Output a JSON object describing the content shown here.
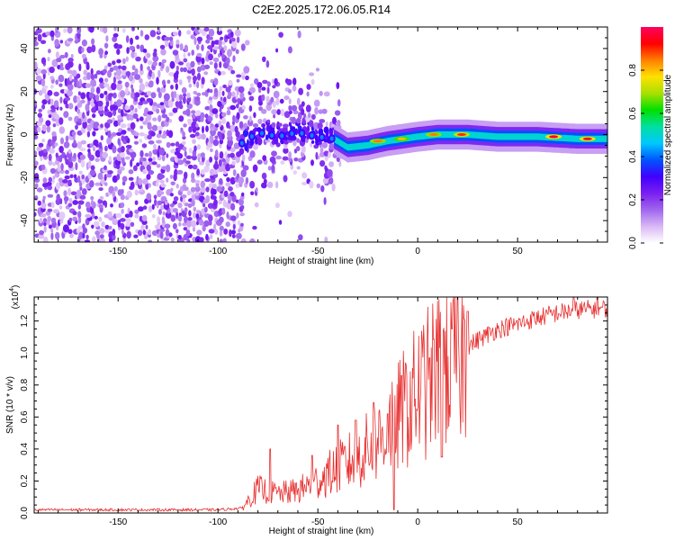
{
  "figure_title": "C2E2.2025.172.06.05.R14",
  "chart_data": [
    {
      "type": "heatmap",
      "xlabel": "Height of straight line (km)",
      "ylabel": "Frequency (Hz)",
      "xlim": [
        -192,
        95
      ],
      "ylim": [
        -50,
        50
      ],
      "x_ticks": [
        -150,
        -100,
        -50,
        0,
        50
      ],
      "y_ticks": [
        -40,
        -20,
        0,
        20,
        40
      ],
      "colorbar": {
        "label": "Normalized spectral amplitude",
        "range": [
          0,
          1
        ],
        "ticks": [
          0.0,
          0.2,
          0.4,
          0.6,
          0.8
        ],
        "colormap": [
          "#ffffff",
          "#d9b8f5",
          "#a066ee",
          "#7a1ff0",
          "#4000ff",
          "#0055ff",
          "#00c8ff",
          "#00e0a0",
          "#00e000",
          "#a8e000",
          "#ffe000",
          "#ff8000",
          "#ff0000",
          "#ff0060"
        ]
      },
      "ridge": [
        {
          "x": -88,
          "y": -4
        },
        {
          "x": -80,
          "y": 1
        },
        {
          "x": -70,
          "y": -1
        },
        {
          "x": -60,
          "y": 1
        },
        {
          "x": -50,
          "y": -1
        },
        {
          "x": -42,
          "y": -2
        },
        {
          "x": -35,
          "y": -6
        },
        {
          "x": -25,
          "y": -5
        },
        {
          "x": -15,
          "y": -3
        },
        {
          "x": 0,
          "y": -1
        },
        {
          "x": 10,
          "y": 0
        },
        {
          "x": 25,
          "y": 0
        },
        {
          "x": 40,
          "y": -1
        },
        {
          "x": 60,
          "y": -1
        },
        {
          "x": 80,
          "y": -2
        },
        {
          "x": 95,
          "y": -2
        }
      ],
      "ridge_peaks": [
        {
          "x": -20,
          "y": -3,
          "amp": 0.85
        },
        {
          "x": -8,
          "y": -2,
          "amp": 0.8
        },
        {
          "x": 8,
          "y": 0,
          "amp": 0.85
        },
        {
          "x": 22,
          "y": 0,
          "amp": 0.9
        },
        {
          "x": 68,
          "y": -1,
          "amp": 0.95
        },
        {
          "x": 85,
          "y": -2,
          "amp": 0.95
        }
      ]
    },
    {
      "type": "line",
      "xlabel": "Height of straight line (km)",
      "ylabel": "SNR (10 * v/v)",
      "y_multiplier": "(x10",
      "y_multiplier_exp": "4",
      "y_multiplier_close": ")",
      "xlim": [
        -192,
        95
      ],
      "ylim": [
        0,
        1.35
      ],
      "x_ticks": [
        -150,
        -100,
        -50,
        0,
        50
      ],
      "y_ticks": [
        0.0,
        0.2,
        0.4,
        0.6,
        0.8,
        1.0,
        1.2
      ],
      "series": [
        {
          "color": "#e83030",
          "envelope": [
            {
              "x": -192,
              "y": 0.02
            },
            {
              "x": -100,
              "y": 0.02
            },
            {
              "x": -88,
              "y": 0.03
            },
            {
              "x": -80,
              "y": 0.15
            },
            {
              "x": -70,
              "y": 0.12
            },
            {
              "x": -60,
              "y": 0.14
            },
            {
              "x": -50,
              "y": 0.2
            },
            {
              "x": -40,
              "y": 0.28
            },
            {
              "x": -30,
              "y": 0.35
            },
            {
              "x": -20,
              "y": 0.45
            },
            {
              "x": -10,
              "y": 0.6
            },
            {
              "x": 0,
              "y": 0.75
            },
            {
              "x": 10,
              "y": 0.88
            },
            {
              "x": 20,
              "y": 1.0
            },
            {
              "x": 30,
              "y": 1.08
            },
            {
              "x": 40,
              "y": 1.15
            },
            {
              "x": 50,
              "y": 1.18
            },
            {
              "x": 60,
              "y": 1.22
            },
            {
              "x": 70,
              "y": 1.25
            },
            {
              "x": 80,
              "y": 1.27
            },
            {
              "x": 95,
              "y": 1.28
            }
          ],
          "spikes": [
            {
              "x": -74,
              "y": 0.4
            },
            {
              "x": -53,
              "y": 0.36
            },
            {
              "x": -40,
              "y": 0.55
            },
            {
              "x": -31,
              "y": 0.58
            },
            {
              "x": -22,
              "y": 0.69
            },
            {
              "x": -15,
              "y": 0.62
            },
            {
              "x": -12,
              "y": 0.02
            },
            {
              "x": -8,
              "y": 0.86
            },
            {
              "x": 6,
              "y": 0.97
            },
            {
              "x": 12,
              "y": 0.35
            },
            {
              "x": 17,
              "y": 1.15
            },
            {
              "x": 25,
              "y": 1.26
            },
            {
              "x": 78,
              "y": 1.35
            },
            {
              "x": 90,
              "y": 1.35
            }
          ]
        }
      ]
    }
  ]
}
